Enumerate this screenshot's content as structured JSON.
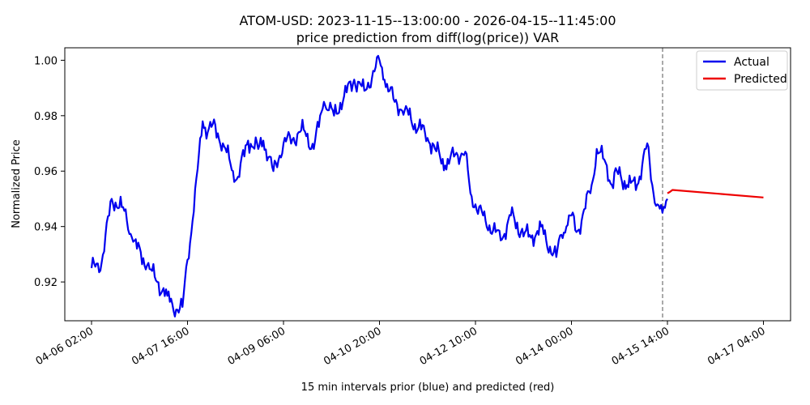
{
  "chart_data": {
    "type": "line",
    "title_line1": "ATOM-USD: 2023-11-15--13:00:00 - 2026-04-15--11:45:00",
    "title_line2": "price prediction from diff(log(price)) VAR",
    "xlabel": "15 min intervals prior (blue) and predicted (red)",
    "ylabel": "Normalized Price",
    "x_tick_labels": [
      "04-06 02:00",
      "04-07 16:00",
      "04-09 06:00",
      "04-10 20:00",
      "04-12 10:00",
      "04-14 00:00",
      "04-15 14:00",
      "04-17 04:00"
    ],
    "y_ticks": [
      0.92,
      0.94,
      0.96,
      0.98,
      1.0
    ],
    "y_tick_labels": [
      "0.92",
      "0.94",
      "0.96",
      "0.98",
      "1.00"
    ],
    "ylim": [
      0.906,
      1.0045
    ],
    "grid": false,
    "legend_position": "top-right",
    "prediction_start_marker": "04-15 14:00",
    "series": [
      {
        "name": "Actual",
        "color": "#0000ee",
        "x": [
          "04-06 02:00",
          "04-06 06:00",
          "04-06 10:00",
          "04-06 14:00",
          "04-06 16:00",
          "04-06 18:00",
          "04-06 20:00",
          "04-07 00:00",
          "04-07 04:00",
          "04-07 08:00",
          "04-07 10:00",
          "04-07 12:00",
          "04-07 14:00",
          "04-07 16:00",
          "04-07 18:00",
          "04-07 22:00",
          "04-08 00:00",
          "04-08 02:00",
          "04-08 06:00",
          "04-08 10:00",
          "04-08 12:00",
          "04-08 16:00",
          "04-08 20:00",
          "04-08 22:00",
          "04-09 00:00",
          "04-09 02:00",
          "04-09 06:00",
          "04-09 10:00",
          "04-09 14:00",
          "04-09 18:00",
          "04-09 22:00",
          "04-10 00:00",
          "04-10 02:00",
          "04-10 06:00",
          "04-10 10:00",
          "04-10 14:00",
          "04-10 18:00",
          "04-10 20:00",
          "04-10 22:00",
          "04-11 02:00",
          "04-11 06:00",
          "04-11 10:00",
          "04-11 14:00",
          "04-11 18:00",
          "04-11 22:00",
          "04-12 02:00",
          "04-12 06:00",
          "04-12 08:00",
          "04-12 10:00",
          "04-12 14:00",
          "04-12 18:00",
          "04-12 20:00",
          "04-13 00:00",
          "04-13 04:00",
          "04-13 08:00",
          "04-13 12:00",
          "04-13 14:00",
          "04-13 18:00",
          "04-13 20:00",
          "04-13 22:00",
          "04-14 00:00",
          "04-14 02:00",
          "04-14 04:00",
          "04-14 08:00",
          "04-14 10:00",
          "04-14 14:00",
          "04-14 16:00",
          "04-14 18:00",
          "04-14 22:00",
          "04-15 02:00",
          "04-15 06:00",
          "04-15 08:00",
          "04-15 10:00",
          "04-15 12:00",
          "04-15 14:00"
        ],
        "values": [
          0.925,
          0.927,
          0.95,
          0.947,
          0.942,
          0.936,
          0.932,
          0.926,
          0.92,
          0.915,
          0.912,
          0.91,
          0.911,
          0.928,
          0.942,
          0.978,
          0.974,
          0.977,
          0.97,
          0.96,
          0.958,
          0.971,
          0.968,
          0.971,
          0.965,
          0.96,
          0.97,
          0.972,
          0.975,
          0.968,
          0.985,
          0.982,
          0.98,
          0.987,
          0.993,
          0.989,
          0.996,
          1.0,
          0.993,
          0.985,
          0.982,
          0.977,
          0.974,
          0.968,
          0.962,
          0.966,
          0.967,
          0.952,
          0.948,
          0.942,
          0.938,
          0.935,
          0.944,
          0.938,
          0.936,
          0.94,
          0.935,
          0.929,
          0.937,
          0.94,
          0.944,
          0.938,
          0.942,
          0.955,
          0.968,
          0.962,
          0.955,
          0.96,
          0.955,
          0.955,
          0.97,
          0.955,
          0.948,
          0.945,
          0.95
        ]
      },
      {
        "name": "Predicted",
        "color": "#ee0000",
        "x": [
          "04-15 14:00",
          "04-15 15:00",
          "04-15 16:00",
          "04-17 04:00"
        ],
        "values": [
          0.952,
          0.9525,
          0.9532,
          0.9505
        ]
      }
    ]
  }
}
